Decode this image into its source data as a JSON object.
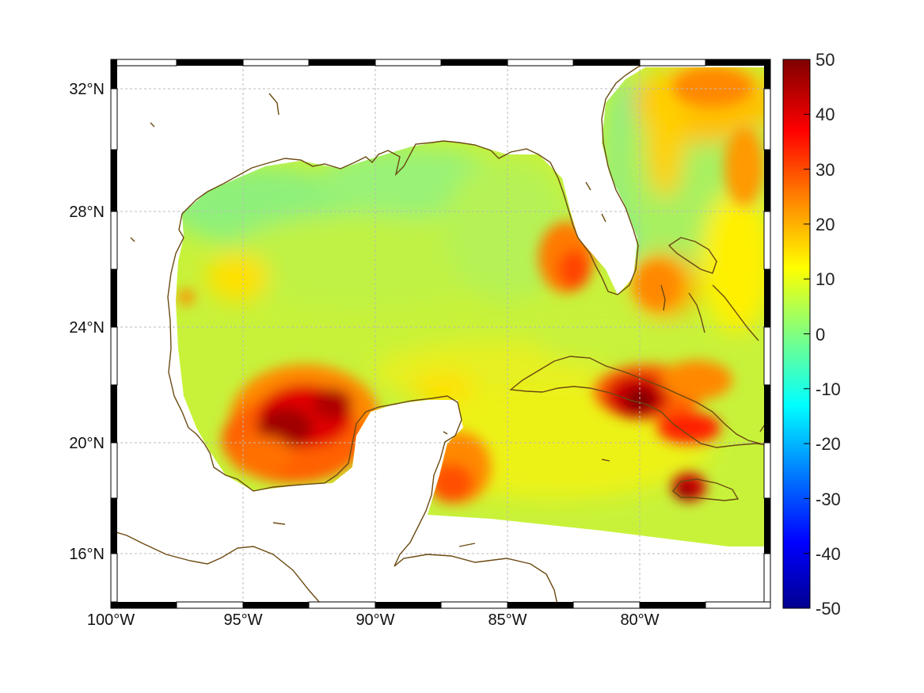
{
  "map": {
    "type": "heatmap",
    "projection": "equirectangular",
    "lon_range": [
      -100,
      -74.2
    ],
    "lat_range": [
      14.2,
      32.9
    ],
    "grid": true,
    "coastline_color": "#6b4a12",
    "ocean_missing_color": "#ffffff"
  },
  "axes": {
    "x_ticks": [
      {
        "value": -100,
        "label": "100°W"
      },
      {
        "value": -95,
        "label": "95°W"
      },
      {
        "value": -90,
        "label": "90°W"
      },
      {
        "value": -85,
        "label": "85°W"
      },
      {
        "value": -80,
        "label": "80°W"
      }
    ],
    "y_ticks": [
      {
        "value": 32,
        "label": "32°N"
      },
      {
        "value": 28,
        "label": "28°N"
      },
      {
        "value": 24,
        "label": "24°N"
      },
      {
        "value": 20,
        "label": "20°N"
      },
      {
        "value": 16,
        "label": "16°N"
      }
    ]
  },
  "colorbar": {
    "colormap": "jet",
    "range": [
      -50,
      50
    ],
    "ticks": [
      "50",
      "40",
      "30",
      "20",
      "10",
      "0",
      "-10",
      "-20",
      "-30",
      "-40",
      "-50"
    ],
    "stops": [
      "#00008f",
      "#0000ff",
      "#0080ff",
      "#00ffff",
      "#80ff80",
      "#ffff00",
      "#ff8000",
      "#ff0000",
      "#800000"
    ]
  },
  "chart_data": {
    "type": "heatmap",
    "background_value": 10,
    "regions": [
      {
        "name": "Bay of Campeche hot spot",
        "lon": -93.2,
        "lat": 20.6,
        "value": 48
      },
      {
        "name": "Central Cuba hot spot",
        "lon": -80.0,
        "lat": 21.4,
        "value": 50
      },
      {
        "name": "Jamaica west hot spot",
        "lon": -77.9,
        "lat": 18.4,
        "value": 45
      },
      {
        "name": "East Cuba warm area",
        "lon": -78.5,
        "lat": 21.0,
        "value": 40
      },
      {
        "name": "Yucatan east warm area",
        "lon": -87.1,
        "lat": 18.4,
        "value": 30
      },
      {
        "name": "West Florida shelf warm area",
        "lon": -83.0,
        "lat": 26.3,
        "value": 28
      },
      {
        "name": "Bahamas warm area",
        "lon": -79.5,
        "lat": 25.8,
        "value": 25
      },
      {
        "name": "Gulf Stream warm band",
        "lon": -77.5,
        "lat": 31.0,
        "value": 25
      },
      {
        "name": "Atlantic inshore cool area",
        "lon": -79.5,
        "lat": 30.5,
        "value": 3
      }
    ]
  }
}
